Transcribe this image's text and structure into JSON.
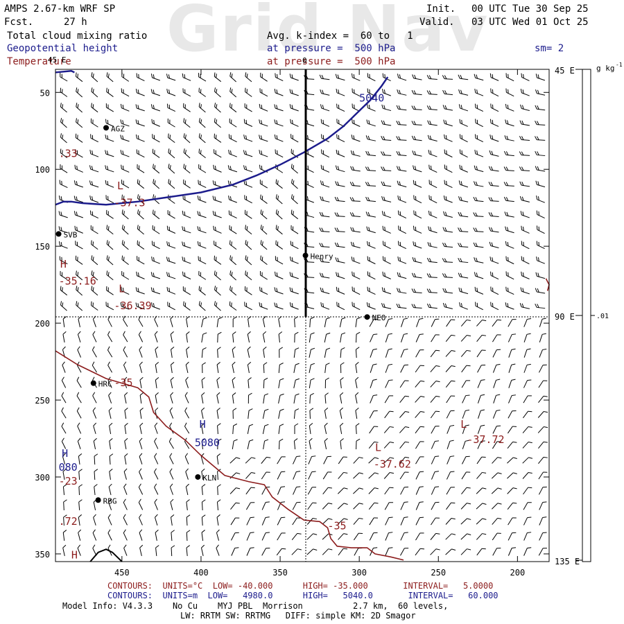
{
  "watermark": "Grid Nav",
  "header": {
    "model": "AMPS 2.67-km WRF SP",
    "fcst_label": "Fcst.",
    "fcst_value": "27 h",
    "init_label": "Init.",
    "init_value": "00 UTC Tue 30 Sep 25",
    "valid_label": "Valid.",
    "valid_value": "03 UTC Wed 01 Oct 25",
    "field1": "Total cloud mixing ratio",
    "field1_avg": "Avg. k-index =  60 to   1",
    "field2": "Geopotential height",
    "field2_pressure": "at pressure =  500 hPa",
    "field3": "Temperature",
    "field3_pressure": "at pressure =  500 hPa",
    "smoothing": "sm= 2"
  },
  "map": {
    "y_ticks": [
      50,
      100,
      150,
      200,
      250,
      300,
      350
    ],
    "x_ticks": [
      450,
      400,
      350,
      300,
      250,
      200
    ],
    "x_range": [
      492,
      180
    ],
    "y_range": [
      35,
      355
    ],
    "section_line_label": "0",
    "right_scale_labels": [
      "45 E",
      "90 E",
      "135 E"
    ],
    "right_scale_corner": "45 E",
    "colorbar_unit": "g kg",
    "colorbar_unit_exp": "-1",
    "colorbar_tick": ".01",
    "stations": [
      {
        "name": "AGZ",
        "x": 460,
        "y": 73
      },
      {
        "name": "SVB",
        "x": 490,
        "y": 142
      },
      {
        "name": "Henry",
        "x": 334,
        "y": 156
      },
      {
        "name": "NEO",
        "x": 295,
        "y": 196
      },
      {
        "name": "HRC",
        "x": 468,
        "y": 239
      },
      {
        "name": "KLN",
        "x": 402,
        "y": 300
      },
      {
        "name": "RBG",
        "x": 465,
        "y": 315
      }
    ],
    "height_labels": [
      {
        "text": "5040",
        "x": 300,
        "y": 56
      },
      {
        "text": "5080",
        "x": 404,
        "y": 280
      },
      {
        "text": "H",
        "x": 401,
        "y": 268
      },
      {
        "text": "H",
        "x": 488,
        "y": 287
      },
      {
        "text": "080",
        "x": 490,
        "y": 296
      }
    ],
    "temperature_labels": [
      {
        "text": ".33",
        "x": 490,
        "y": 92
      },
      {
        "text": "L",
        "x": 453,
        "y": 113
      },
      {
        "text": "-37.3",
        "x": 455,
        "y": 124
      },
      {
        "text": "H",
        "x": 489,
        "y": 164
      },
      {
        "text": "-35.16",
        "x": 490,
        "y": 175
      },
      {
        "text": "L",
        "x": 452,
        "y": 180
      },
      {
        "text": "-36.39",
        "x": 455,
        "y": 191
      },
      {
        "text": "-35",
        "x": 455,
        "y": 241
      },
      {
        "text": "L",
        "x": 236,
        "y": 268
      },
      {
        "text": "-37.72",
        "x": 232,
        "y": 278
      },
      {
        "text": "L",
        "x": 290,
        "y": 283
      },
      {
        "text": "-37.62",
        "x": 291,
        "y": 294
      },
      {
        "text": "-23",
        "x": 490,
        "y": 305
      },
      {
        "text": "-35",
        "x": 320,
        "y": 334
      },
      {
        "text": ".72",
        "x": 490,
        "y": 331
      },
      {
        "text": "H",
        "x": 482,
        "y": 353
      }
    ]
  },
  "footer": {
    "temp_contours": "CONTOURS:  UNITS=°C  LOW= -40.000      HIGH= -35.000       INTERVAL=   5.0000",
    "height_contours": "CONTOURS:  UNITS=m  LOW=   4980.0      HIGH=   5040.0       INTERVAL=   60.000",
    "model_info": "Model Info: V4.3.3    No Cu    MYJ PBL  Morrison          2.7 km,  60 levels,",
    "model_info2": "LW: RRTM SW: RRTMG   DIFF: simple KM: 2D Smagor"
  },
  "colors": {
    "height": "#1c1c8c",
    "temperature": "#8c1c1c",
    "axes": "#000000",
    "wind": "#000000"
  }
}
